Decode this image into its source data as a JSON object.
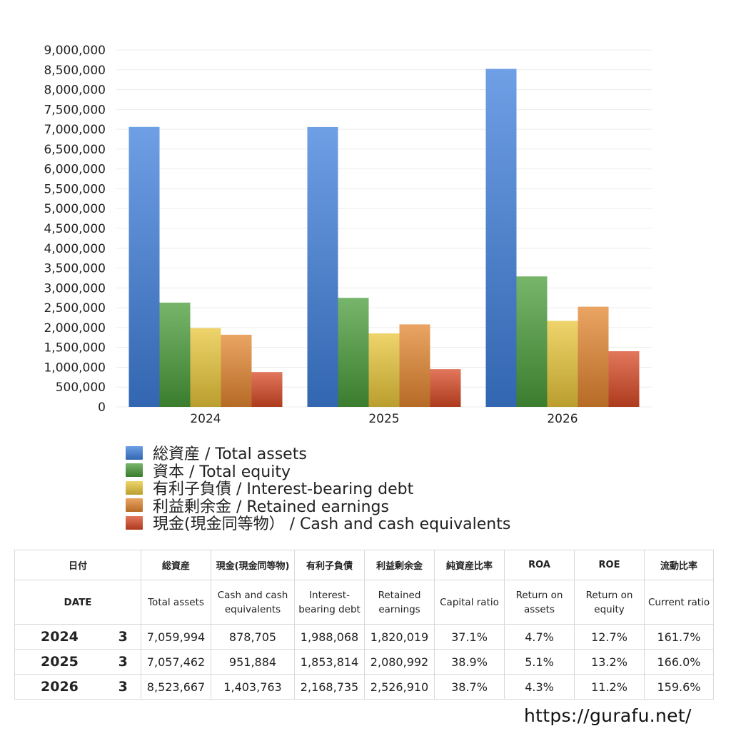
{
  "chart_data": {
    "type": "bar",
    "categories": [
      "2024",
      "2025",
      "2026"
    ],
    "series": [
      {
        "name": "総資産 / Total assets",
        "values": [
          7059994,
          7057462,
          8523667
        ],
        "color": "#3f7fdc"
      },
      {
        "name": "資本 / Total equity",
        "values": [
          2630000,
          2750000,
          3290000
        ],
        "color": "#4a9c3a"
      },
      {
        "name": "有利子負債 / Interest-bearing debt",
        "values": [
          1988068,
          1853814,
          2168735
        ],
        "color": "#e8c53a"
      },
      {
        "name": "利益剰余金 / Retained earnings",
        "values": [
          1820019,
          2080992,
          2526910
        ],
        "color": "#e3862f"
      },
      {
        "name": "現金(現金同等物） /  Cash and cash equivalents",
        "values": [
          878705,
          951884,
          1403763
        ],
        "color": "#d84a26"
      }
    ],
    "ylim": [
      0,
      9000000
    ],
    "yticks": [
      "0",
      "500,000",
      "1,000,000",
      "1,500,000",
      "2,000,000",
      "2,500,000",
      "3,000,000",
      "3,500,000",
      "4,000,000",
      "4,500,000",
      "5,000,000",
      "5,500,000",
      "6,000,000",
      "6,500,000",
      "7,000,000",
      "7,500,000",
      "8,000,000",
      "8,500,000",
      "9,000,000"
    ],
    "grid": true,
    "legend": "bottom"
  },
  "table": {
    "header_jp": [
      "日付",
      "総資産",
      "現金(現金同等物)",
      "有利子負債",
      "利益剰余金",
      "純資産比率",
      "ROA",
      "ROE",
      "流動比率"
    ],
    "header_en": [
      "DATE",
      "Total assets",
      "Cash and cash equivalents",
      "Interest-bearing debt",
      "Retained earnings",
      "Capital ratio",
      "Return on assets",
      "Return on equity",
      "Current ratio"
    ],
    "rows": [
      {
        "year": "2024",
        "month": "3",
        "cells": [
          "7,059,994",
          "878,705",
          "1,988,068",
          "1,820,019",
          "37.1%",
          "4.7%",
          "12.7%",
          "161.7%"
        ]
      },
      {
        "year": "2025",
        "month": "3",
        "cells": [
          "7,057,462",
          "951,884",
          "1,853,814",
          "2,080,992",
          "38.9%",
          "5.1%",
          "13.2%",
          "166.0%"
        ]
      },
      {
        "year": "2026",
        "month": "3",
        "cells": [
          "8,523,667",
          "1,403,763",
          "2,168,735",
          "2,526,910",
          "38.7%",
          "4.3%",
          "11.2%",
          "159.6%"
        ]
      }
    ]
  },
  "footer": {
    "url": "https://gurafu.net/"
  }
}
